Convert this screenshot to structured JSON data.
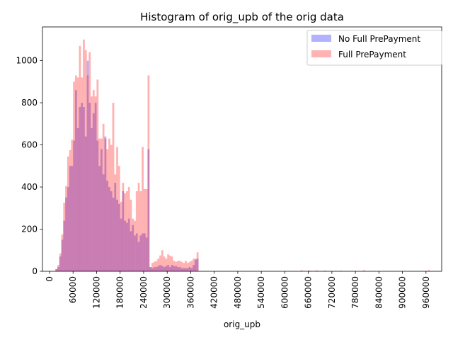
{
  "chart_data": {
    "type": "bar",
    "title": "Histogram of orig_upb of the orig data",
    "xlabel": "orig_upb",
    "ylabel": "",
    "xlim": [
      -18000,
      1000000
    ],
    "ylim": [
      0,
      1160
    ],
    "xticks": [
      0,
      60000,
      120000,
      180000,
      240000,
      300000,
      360000,
      420000,
      480000,
      540000,
      600000,
      660000,
      720000,
      780000,
      840000,
      900000,
      960000
    ],
    "yticks": [
      0,
      200,
      400,
      600,
      800,
      1000
    ],
    "bin_start": 15000,
    "bin_width": 5000,
    "legend_position": "top-right",
    "series": [
      {
        "name": "No Full PrePayment",
        "color": "#0000ff",
        "alpha": 0.3,
        "values": [
          10,
          20,
          70,
          150,
          240,
          350,
          400,
          500,
          500,
          620,
          860,
          680,
          780,
          800,
          780,
          640,
          1000,
          800,
          680,
          750,
          800,
          620,
          500,
          580,
          460,
          640,
          430,
          400,
          380,
          350,
          420,
          340,
          320,
          250,
          380,
          240,
          230,
          250,
          190,
          220,
          170,
          180,
          140,
          170,
          180,
          180,
          160,
          580,
          20,
          15,
          20,
          20,
          25,
          30,
          25,
          20,
          25,
          30,
          20,
          30,
          25,
          25,
          20,
          20,
          15,
          15,
          15,
          15,
          20,
          15,
          30,
          55,
          60
        ]
      },
      {
        "name": "Full PrePayment",
        "color": "#ff0000",
        "alpha": 0.3,
        "values": [
          10,
          30,
          85,
          175,
          325,
          405,
          545,
          575,
          625,
          900,
          930,
          920,
          1070,
          920,
          1100,
          1050,
          930,
          1040,
          830,
          860,
          830,
          910,
          630,
          630,
          700,
          630,
          580,
          630,
          600,
          800,
          460,
          590,
          500,
          330,
          420,
          370,
          380,
          400,
          340,
          250,
          240,
          380,
          420,
          380,
          590,
          390,
          390,
          930,
          20,
          40,
          45,
          50,
          60,
          75,
          100,
          70,
          60,
          80,
          75,
          70,
          50,
          45,
          50,
          50,
          45,
          40,
          50,
          40,
          45,
          50,
          60,
          60,
          90
        ]
      },
      {
        "name": "No Full PrePayment",
        "color": "#0000ff",
        "alpha": 0.3,
        "kind": "sparse",
        "points": [
          [
            675000,
            2
          ],
          [
            700000,
            2
          ],
          [
            800000,
            2
          ],
          [
            965000,
            2
          ]
        ]
      },
      {
        "name": "Full PrePayment",
        "color": "#ff0000",
        "alpha": 0.3,
        "kind": "sparse",
        "points": [
          [
            640000,
            5
          ],
          [
            660000,
            5
          ],
          [
            680000,
            5
          ],
          [
            700000,
            3
          ],
          [
            740000,
            3
          ],
          [
            800000,
            5
          ],
          [
            965000,
            5
          ]
        ]
      }
    ]
  }
}
